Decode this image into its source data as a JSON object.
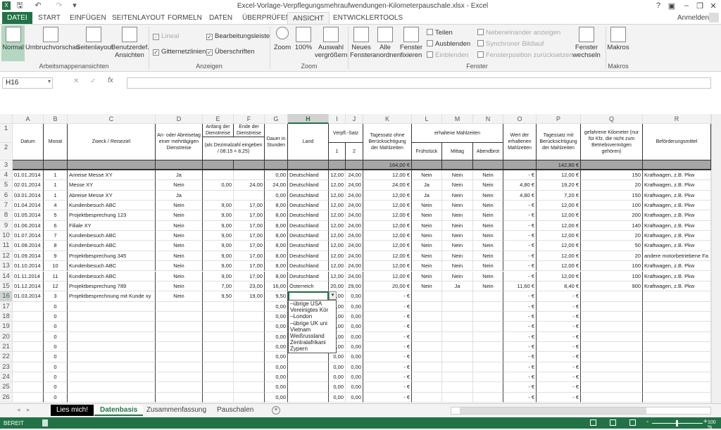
{
  "window": {
    "title": "Excel-Vorlage-Verpflegungsmehraufwendungen-Kilometerpauschale.xlsx - Excel",
    "help": "?",
    "signin": "Anmelden"
  },
  "ribbon_tabs": [
    "DATEI",
    "START",
    "EINFÜGEN",
    "SEITENLAYOUT",
    "FORMELN",
    "DATEN",
    "ÜBERPRÜFEN",
    "ANSICHT",
    "ENTWICKLERTOOLS"
  ],
  "ribbon": {
    "views": [
      "Normal",
      "Umbruchvorschau",
      "Seitenlayout",
      "Benutzerdef. Ansichten"
    ],
    "views_group": "Arbeitsmappenansichten",
    "show": {
      "lineal": "Lineal",
      "bearbeitungsleiste": "Bearbeitungsleiste",
      "gitternetzlinien": "Gitternetzlinien",
      "ueberschriften": "Überschriften",
      "group": "Anzeigen"
    },
    "zoom": {
      "zoom": "Zoom",
      "hundred": "100%",
      "auswahl": "Auswahl vergrößern",
      "group": "Zoom"
    },
    "window": {
      "neues": "Neues Fenster",
      "alle": "Alle anordnen",
      "fixieren": "Fenster fixieren",
      "teilen": "Teilen",
      "ausblenden": "Ausblenden",
      "einblenden": "Einblenden",
      "nebeneinander": "Nebeneinander anzeigen",
      "synchron": "Synchroner Bildlauf",
      "position": "Fensterposition zurücksetzen",
      "wechseln": "Fenster wechseln",
      "group": "Fenster"
    },
    "macros": {
      "makros": "Makros",
      "group": "Makros"
    }
  },
  "formula_bar": {
    "name_box": "H16",
    "formula": ""
  },
  "columns": [
    "A",
    "B",
    "C",
    "D",
    "E",
    "F",
    "G",
    "H",
    "I",
    "J",
    "K",
    "L",
    "M",
    "N",
    "O",
    "P",
    "Q",
    "R"
  ],
  "headers": {
    "A": "Datum",
    "B": "Monat",
    "C": "Zweck / Reiseziel",
    "D": "An- oder Abreisetag einer mehrtägigen Dienstreise",
    "E1": "Anfang der Dienstreise",
    "F1": "Ende der Dienstreise",
    "EF2": "(als Dezimalzahl eingeben / 08:15 = 8,25)",
    "G": "Dauer in Stunden",
    "H": "Land",
    "IJ1": "Verpfl.-Satz",
    "I2": "1",
    "J2": "2",
    "K": "Tagessatz ohne Berücksichtigung der Mahlzeiten",
    "LMN1": "erhaltene Mahlzeiten",
    "L2": "Frühstück",
    "M2": "Mittag",
    "N2": "Abendbrot",
    "O": "Wert der erhaltenen Mahlzeiten",
    "P": "Tagessatz mit Berücksichtigung der Mahlzeiten",
    "Q": "gefahrene Kilometer (nur für Kfz, die nicht zum Betriebsvermögen gehören)",
    "R": "Beförderungsmittel",
    "K3": "164,00 €",
    "P3": "142,80 €"
  },
  "rows": [
    [
      "01.01.2014",
      "1",
      "Anreise Messe XY",
      "Ja",
      "",
      "",
      "0,00",
      "Deutschland",
      "12,00",
      "24,00",
      "12,00 €",
      "Nein",
      "Nein",
      "Nein",
      "-   €",
      "12,00 €",
      "150",
      "Kraftwagen, z.B. Pkw"
    ],
    [
      "02.01.2014",
      "1",
      "Messe XY",
      "Nein",
      "0,00",
      "24,00",
      "24,00",
      "Deutschland",
      "12,00",
      "24,00",
      "24,00 €",
      "Ja",
      "Nein",
      "Nein",
      "4,80 €",
      "19,20 €",
      "20",
      "Kraftwagen, z.B. Pkw"
    ],
    [
      "03.01.2014",
      "1",
      "Abreise Messe XY",
      "Ja",
      "",
      "",
      "0,00",
      "Deutschland",
      "12,00",
      "24,00",
      "12,00 €",
      "Ja",
      "Nein",
      "Nein",
      "4,80 €",
      "7,20 €",
      "150",
      "Kraftwagen, z.B. Pkw"
    ],
    [
      "01.04.2014",
      "4",
      "Kundenbesuch ABC",
      "Nein",
      "9,00",
      "17,00",
      "8,00",
      "Deutschland",
      "12,00",
      "24,00",
      "12,00 €",
      "Nein",
      "Nein",
      "Nein",
      "-   €",
      "12,00 €",
      "100",
      "Kraftwagen, z.B. Pkw"
    ],
    [
      "01.05.2014",
      "5",
      "Projektbesprechung 123",
      "Nein",
      "9,00",
      "17,00",
      "8,00",
      "Deutschland",
      "12,00",
      "24,00",
      "12,00 €",
      "Nein",
      "Nein",
      "Nein",
      "-   €",
      "12,00 €",
      "200",
      "Kraftwagen, z.B. Pkw"
    ],
    [
      "01.06.2014",
      "6",
      "Filiale XY",
      "Nein",
      "9,00",
      "17,00",
      "8,00",
      "Deutschland",
      "12,00",
      "24,00",
      "12,00 €",
      "Nein",
      "Nein",
      "Nein",
      "-   €",
      "12,00 €",
      "140",
      "Kraftwagen, z.B. Pkw"
    ],
    [
      "01.07.2014",
      "7",
      "Kundenbesuch ABC",
      "Nein",
      "9,00",
      "17,00",
      "8,00",
      "Deutschland",
      "12,00",
      "24,00",
      "12,00 €",
      "Nein",
      "Nein",
      "Nein",
      "-   €",
      "12,00 €",
      "20",
      "Kraftwagen, z.B. Pkw"
    ],
    [
      "01.08.2014",
      "8",
      "Kundenbesuch ABC",
      "Nein",
      "9,00",
      "17,00",
      "8,00",
      "Deutschland",
      "12,00",
      "24,00",
      "12,00 €",
      "Nein",
      "Nein",
      "Nein",
      "-   €",
      "12,00 €",
      "50",
      "Kraftwagen, z.B. Pkw"
    ],
    [
      "01.09.2014",
      "9",
      "Projektbesprechung 345",
      "Nein",
      "9,00",
      "17,00",
      "8,00",
      "Deutschland",
      "12,00",
      "24,00",
      "12,00 €",
      "Nein",
      "Nein",
      "Nein",
      "-   €",
      "12,00 €",
      "20",
      "andere motorbetriebene Fa"
    ],
    [
      "01.10.2014",
      "10",
      "Kundenbesuch ABC",
      "Nein",
      "9,00",
      "17,00",
      "8,00",
      "Deutschland",
      "12,00",
      "24,00",
      "12,00 €",
      "Nein",
      "Nein",
      "Nein",
      "-   €",
      "12,00 €",
      "100",
      "Kraftwagen, z.B. Pkw"
    ],
    [
      "01.11.2014",
      "11",
      "Kundenbesuch ABC",
      "Nein",
      "9,00",
      "17,00",
      "8,00",
      "Deutschland",
      "12,00",
      "24,00",
      "12,00 €",
      "Nein",
      "Nein",
      "Nein",
      "-   €",
      "12,00 €",
      "100",
      "Kraftwagen, z.B. Pkw"
    ],
    [
      "01.12.2014",
      "12",
      "Projektbesprechung 789",
      "Nein",
      "7,00",
      "23,00",
      "16,00",
      "Österreich",
      "20,00",
      "29,00",
      "20,00 €",
      "Nein",
      "Ja",
      "Nein",
      "11,60 €",
      "8,40 €",
      "900",
      "Kraftwagen, z.B. Pkw"
    ],
    [
      "01.03.2014",
      "3",
      "Projektbesprechnung mit Kunde xy",
      "Nein",
      "9,50",
      "19,00",
      "9,50",
      "",
      "0,00",
      "0,00",
      "-   €",
      "",
      "",
      "",
      "-   €",
      "-   €",
      "",
      ""
    ],
    [
      "",
      "0",
      "",
      "",
      "",
      "",
      "0,00",
      "",
      "0,00",
      "0,00",
      "-   €",
      "",
      "",
      "",
      "-   €",
      "-   €",
      "",
      ""
    ],
    [
      "",
      "0",
      "",
      "",
      "",
      "",
      "0,00",
      "",
      "0,00",
      "0,00",
      "-   €",
      "",
      "",
      "",
      "-   €",
      "-   €",
      "",
      ""
    ],
    [
      "",
      "0",
      "",
      "",
      "",
      "",
      "0,00",
      "",
      "0,00",
      "0,00",
      "-   €",
      "",
      "",
      "",
      "-   €",
      "-   €",
      "",
      ""
    ],
    [
      "",
      "0",
      "",
      "",
      "",
      "",
      "0,00",
      "",
      "0,00",
      "0,00",
      "-   €",
      "",
      "",
      "",
      "-   €",
      "-   €",
      "",
      ""
    ],
    [
      "",
      "0",
      "",
      "",
      "",
      "",
      "0,00",
      "",
      "0,00",
      "0,00",
      "-   €",
      "",
      "",
      "",
      "-   €",
      "-   €",
      "",
      ""
    ],
    [
      "",
      "0",
      "",
      "",
      "",
      "",
      "0,00",
      "",
      "0,00",
      "0,00",
      "-   €",
      "",
      "",
      "",
      "-   €",
      "-   €",
      "",
      ""
    ],
    [
      "",
      "0",
      "",
      "",
      "",
      "",
      "0,00",
      "",
      "0,00",
      "0,00",
      "-   €",
      "",
      "",
      "",
      "-   €",
      "-   €",
      "",
      ""
    ],
    [
      "",
      "0",
      "",
      "",
      "",
      "",
      "0,00",
      "",
      "0,00",
      "0,00",
      "-   €",
      "",
      "",
      "",
      "-   €",
      "-   €",
      "",
      ""
    ],
    [
      "",
      "0",
      "",
      "",
      "",
      "",
      "0,00",
      "",
      "0,00",
      "0,00",
      "-   €",
      "",
      "",
      "",
      "-   €",
      "-   €",
      "",
      ""
    ],
    [
      "",
      "0",
      "",
      "",
      "",
      "",
      "0,00",
      "",
      "0,00",
      "0,00",
      "-   €",
      "",
      "",
      "",
      "-   €",
      "-   €",
      "",
      ""
    ]
  ],
  "dropdown": {
    "options": [
      "–übrige USA",
      "Vereinigtes Kör",
      "–London",
      "–übrige UK uni",
      "Vietnam",
      "Weißrussland",
      "Zentralafrikani",
      "Zypern"
    ]
  },
  "sheets": [
    "Lies mich!",
    "Datenbasis",
    "Zusammenfassung",
    "Pauschalen"
  ],
  "active_sheet": "Datenbasis",
  "status": {
    "ready": "BEREIT",
    "zoom": "100 %"
  },
  "colors": {
    "accent": "#217346",
    "header_gray": "#a6a6a6"
  }
}
